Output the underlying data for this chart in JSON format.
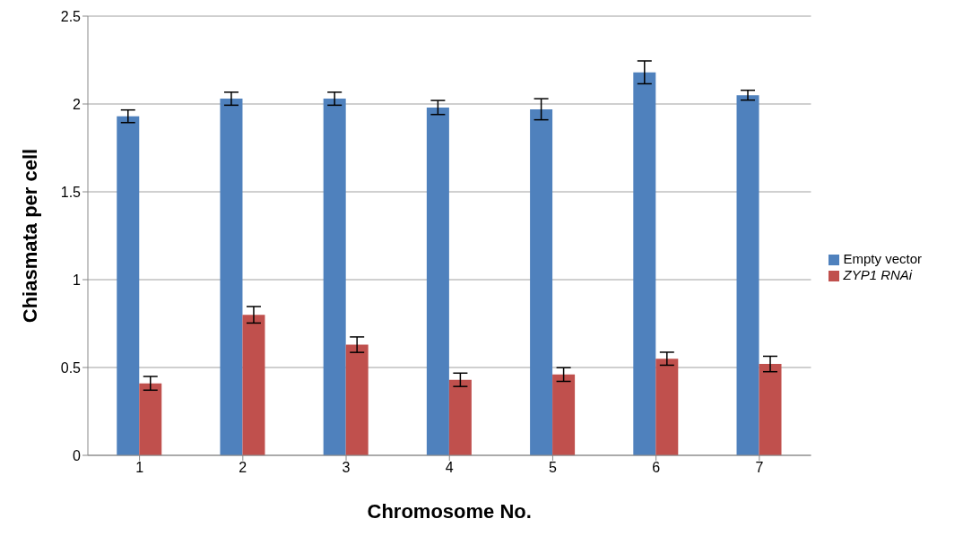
{
  "chart_data": {
    "type": "bar",
    "xlabel": "Chromosome No.",
    "ylabel": "Chiasmata per cell",
    "categories": [
      "1",
      "2",
      "3",
      "4",
      "5",
      "6",
      "7"
    ],
    "series": [
      {
        "name": "Empty vector",
        "color": "#4f81bd",
        "values": [
          1.93,
          2.03,
          2.03,
          1.98,
          1.97,
          2.18,
          2.05
        ],
        "errors": [
          0.036,
          0.037,
          0.037,
          0.04,
          0.06,
          0.065,
          0.028
        ]
      },
      {
        "name": "ZYP1 RNAi",
        "color": "#c0504d",
        "values": [
          0.41,
          0.8,
          0.63,
          0.43,
          0.46,
          0.55,
          0.52
        ],
        "errors": [
          0.039,
          0.047,
          0.044,
          0.038,
          0.039,
          0.037,
          0.044
        ]
      }
    ],
    "ylim": [
      0,
      2.5
    ],
    "yticks": [
      0,
      0.5,
      1,
      1.5,
      2,
      2.5
    ],
    "grid": "y",
    "legend": "right"
  }
}
